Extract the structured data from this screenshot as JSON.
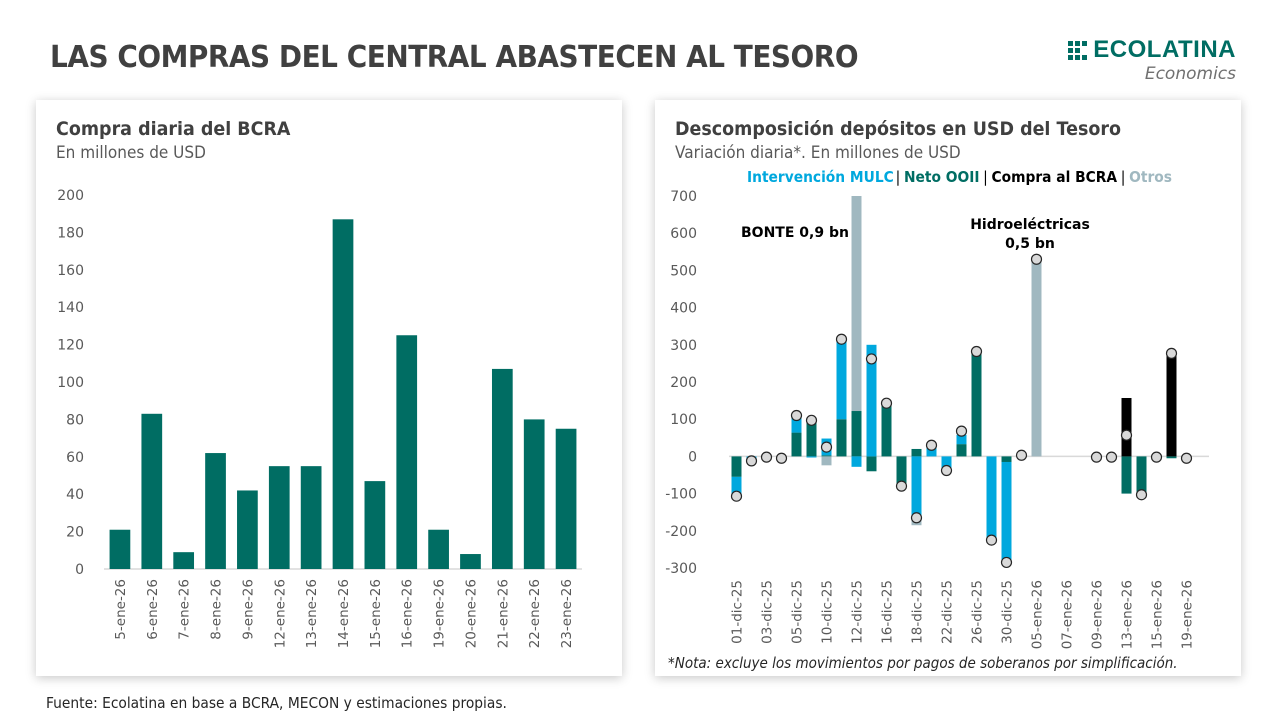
{
  "header": {
    "title": "LAS COMPRAS DEL CENTRAL ABASTECEN AL TESORO",
    "logo_name": "ECOLATINA",
    "logo_sub": "Economics",
    "brand_color": "#006d63"
  },
  "left_panel": {
    "title": "Compra diaria del BCRA",
    "subtitle": "En millones de USD"
  },
  "right_panel": {
    "title": "Descomposición depósitos en USD del Tesoro",
    "subtitle": "Variación diaria*. En millones de USD",
    "legend": [
      {
        "label": "Intervención MULC",
        "color": "#00a8de"
      },
      {
        "label": "Neto OOII",
        "color": "#006d63"
      },
      {
        "label": "Compra al BCRA",
        "color": "#000000"
      },
      {
        "label": "Otros",
        "color": "#a0b8c0"
      }
    ],
    "legend_separator": "|",
    "note": "*Nota: excluye los movimientos por pagos de soberanos por simplificación."
  },
  "footer": {
    "source": "Fuente: Ecolatina en base a BCRA, MECON y estimaciones propias."
  },
  "chart_data": [
    {
      "type": "bar",
      "title": "Compra diaria del BCRA",
      "subtitle": "En millones de USD",
      "xlabel": "",
      "ylabel": "",
      "ylim": [
        0,
        200
      ],
      "yticks": [
        0,
        20,
        40,
        60,
        80,
        100,
        120,
        140,
        160,
        180,
        200
      ],
      "grid": false,
      "categories": [
        "5-ene-26",
        "6-ene-26",
        "7-ene-26",
        "8-ene-26",
        "9-ene-26",
        "12-ene-26",
        "13-ene-26",
        "14-ene-26",
        "15-ene-26",
        "16-ene-26",
        "19-ene-26",
        "20-ene-26",
        "21-ene-26",
        "22-ene-26",
        "23-ene-26"
      ],
      "values": [
        21,
        83,
        9,
        62,
        42,
        55,
        55,
        187,
        47,
        125,
        21,
        8,
        107,
        80,
        75
      ],
      "color": "#006d63"
    },
    {
      "type": "bar",
      "stacked": true,
      "title": "Descomposición depósitos en USD del Tesoro",
      "subtitle": "Variación diaria*. En millones de USD",
      "xlabel": "",
      "ylabel": "",
      "ylim": [
        -300,
        700
      ],
      "yticks": [
        -300,
        -200,
        -100,
        0,
        100,
        200,
        300,
        400,
        500,
        600,
        700
      ],
      "grid": false,
      "legend_position": "top",
      "categories": [
        "01-dic-25",
        "02-dic-25",
        "03-dic-25",
        "04-dic-25",
        "05-dic-25",
        "09-dic-25",
        "10-dic-25",
        "11-dic-25",
        "12-dic-25",
        "15-dic-25",
        "16-dic-25",
        "17-dic-25",
        "18-dic-25",
        "19-dic-25",
        "22-dic-25",
        "23-dic-25",
        "26-dic-25",
        "29-dic-25",
        "30-dic-25",
        "02-ene-26",
        "05-ene-26",
        "06-ene-26",
        "07-ene-26",
        "08-ene-26",
        "09-ene-26",
        "12-ene-26",
        "13-ene-26",
        "14-ene-26",
        "15-ene-26",
        "16-ene-26",
        "19-ene-26",
        "20-ene-26"
      ],
      "tick_labels": [
        "01-dic-25",
        "",
        "03-dic-25",
        "",
        "05-dic-25",
        "",
        "10-dic-25",
        "",
        "12-dic-25",
        "",
        "16-dic-25",
        "",
        "18-dic-25",
        "",
        "22-dic-25",
        "",
        "26-dic-25",
        "",
        "30-dic-25",
        "",
        "05-ene-26",
        "",
        "07-ene-26",
        "",
        "09-ene-26",
        "",
        "13-ene-26",
        "",
        "15-ene-26",
        "",
        "19-ene-26",
        ""
      ],
      "series": [
        {
          "name": "Neto OOII",
          "color": "#006d63",
          "values": [
            -55,
            0,
            0,
            0,
            64,
            99,
            3,
            100,
            122,
            -40,
            145,
            -75,
            20,
            0,
            0,
            33,
            280,
            0,
            -15,
            0,
            0,
            0,
            0,
            0,
            0,
            0,
            -100,
            -100,
            0,
            -5,
            0,
            0
          ]
        },
        {
          "name": "Intervención MULC",
          "color": "#00a8de",
          "values": [
            -50,
            -12,
            0,
            0,
            43,
            -3,
            45,
            215,
            -28,
            300,
            0,
            -5,
            -165,
            30,
            -35,
            25,
            0,
            -225,
            -270,
            0,
            0,
            0,
            0,
            0,
            0,
            0,
            0,
            0,
            0,
            0,
            0,
            0
          ]
        },
        {
          "name": "Compra al BCRA",
          "color": "#000000",
          "values": [
            0,
            0,
            0,
            0,
            0,
            0,
            0,
            0,
            0,
            0,
            0,
            0,
            0,
            0,
            0,
            0,
            0,
            0,
            0,
            0,
            0,
            0,
            0,
            0,
            0,
            0,
            157,
            0,
            0,
            275,
            0,
            0
          ]
        },
        {
          "name": "Otros",
          "color": "#a0b8c0",
          "values": [
            0,
            0,
            0,
            0,
            0,
            0,
            -24,
            0,
            578,
            0,
            0,
            0,
            -20,
            0,
            0,
            0,
            0,
            0,
            0,
            0,
            530,
            0,
            0,
            0,
            0,
            0,
            0,
            0,
            0,
            0,
            0,
            0
          ]
        }
      ],
      "totals": [
        -107,
        -12,
        -2,
        -5,
        110,
        97,
        25,
        315,
        700,
        262,
        143,
        -80,
        -165,
        30,
        -38,
        68,
        282,
        -225,
        -285,
        3,
        530,
        null,
        null,
        null,
        -2,
        -2,
        57,
        -103,
        -2,
        277,
        -5,
        null
      ],
      "annotations": [
        {
          "text": "BONTE 0,9 bn",
          "category": "12-dic-25"
        },
        {
          "text": "Hidroeléctricas",
          "text2": "0,5 bn",
          "category": "05-ene-26"
        }
      ]
    }
  ]
}
